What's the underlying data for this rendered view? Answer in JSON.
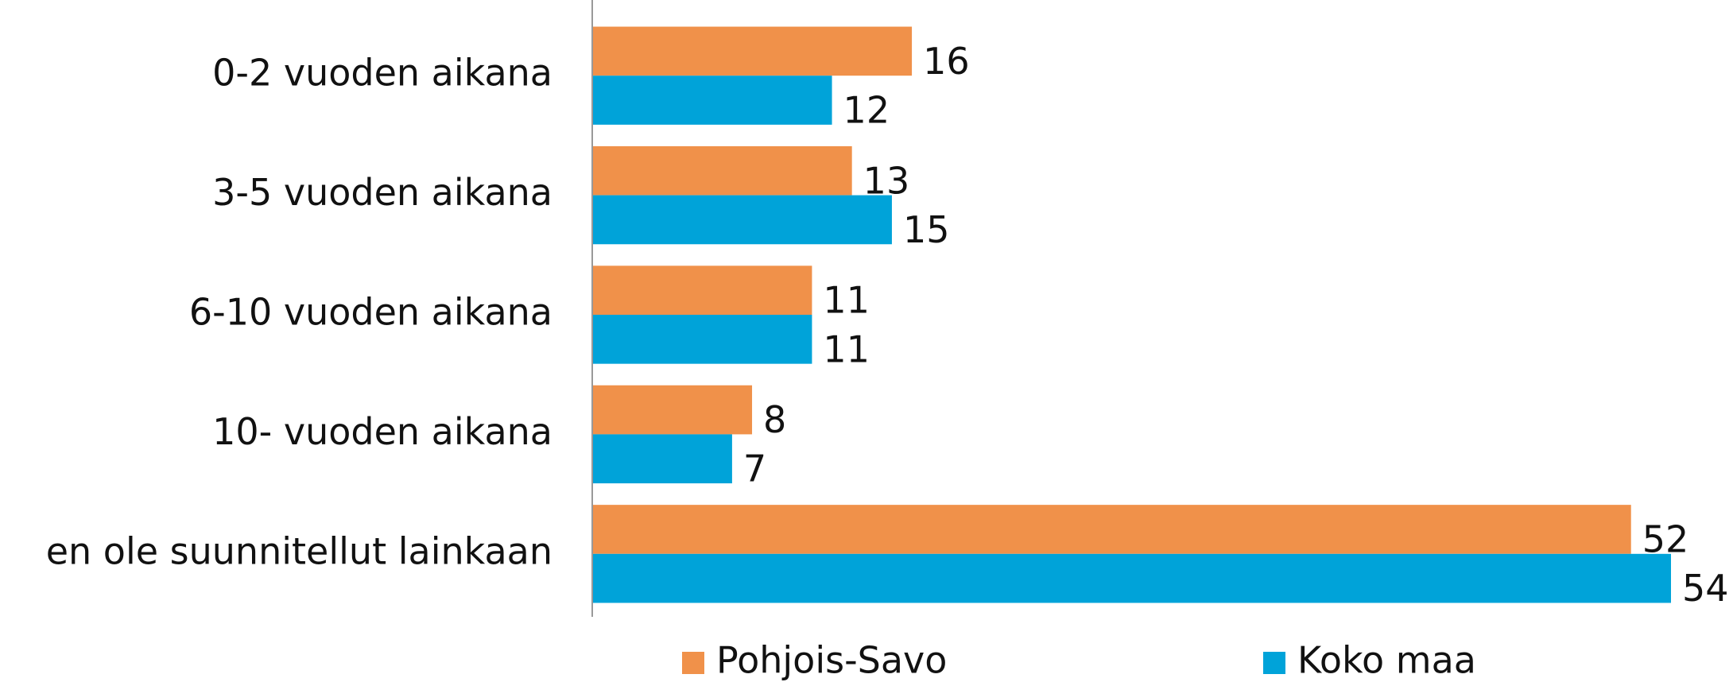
{
  "chart_data": {
    "type": "bar",
    "orientation": "horizontal",
    "categories": [
      "0-2 vuoden aikana",
      "3-5 vuoden aikana",
      "6-10 vuoden aikana",
      "10- vuoden aikana",
      "en ole suunnitellut  lainkaan"
    ],
    "series": [
      {
        "name": "Pohjois-Savo",
        "color": "#f0914a",
        "values": [
          16,
          13,
          11,
          8,
          52
        ]
      },
      {
        "name": "Koko maa",
        "color": "#00a3d9",
        "values": [
          12,
          15,
          11,
          7,
          54
        ]
      }
    ],
    "legend": "bottom"
  }
}
